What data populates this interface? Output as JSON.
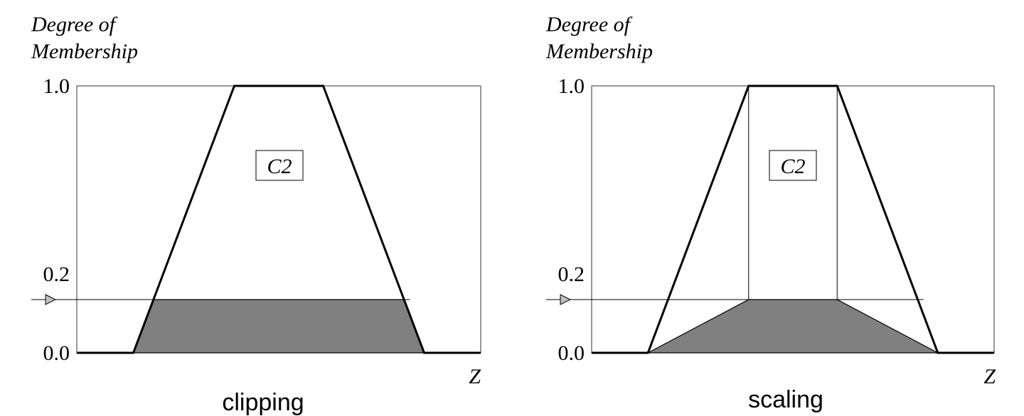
{
  "chart_data": [
    {
      "type": "area",
      "caption": "clipping",
      "ylabel_line1": "Degree of",
      "ylabel_line2": "Membership",
      "xlabel": "Z",
      "ylim": [
        0,
        1
      ],
      "y_ticks": [
        {
          "value": 0.0,
          "label": "0.0"
        },
        {
          "value": 0.2,
          "label": "0.2"
        },
        {
          "value": 1.0,
          "label": "1.0"
        }
      ],
      "set_label": "C2",
      "membership_function": {
        "x": [
          0,
          14,
          39,
          61,
          86,
          100
        ],
        "y": [
          0,
          0,
          1,
          1,
          0,
          0
        ]
      },
      "level": 0.2,
      "filled_region": {
        "x": [
          14,
          19,
          81,
          86
        ],
        "y": [
          0,
          0.2,
          0.2,
          0
        ]
      },
      "colors": {
        "fill": "#808080",
        "line": "#000000",
        "marker": "#bfbfbf"
      }
    },
    {
      "type": "area",
      "caption": "scaling",
      "ylabel_line1": "Degree of",
      "ylabel_line2": "Membership",
      "xlabel": "Z",
      "ylim": [
        0,
        1
      ],
      "y_ticks": [
        {
          "value": 0.0,
          "label": "0.0"
        },
        {
          "value": 0.2,
          "label": "0.2"
        },
        {
          "value": 1.0,
          "label": "1.0"
        }
      ],
      "set_label": "C2",
      "membership_function": {
        "x": [
          0,
          14,
          39,
          61,
          86,
          100
        ],
        "y": [
          0,
          0,
          1,
          1,
          0,
          0
        ]
      },
      "level": 0.2,
      "filled_region": {
        "x": [
          14,
          39,
          61,
          86
        ],
        "y": [
          0,
          0.2,
          0.2,
          0
        ]
      },
      "guide_lines_x": [
        39,
        61
      ],
      "colors": {
        "fill": "#808080",
        "line": "#000000",
        "marker": "#bfbfbf"
      }
    }
  ]
}
